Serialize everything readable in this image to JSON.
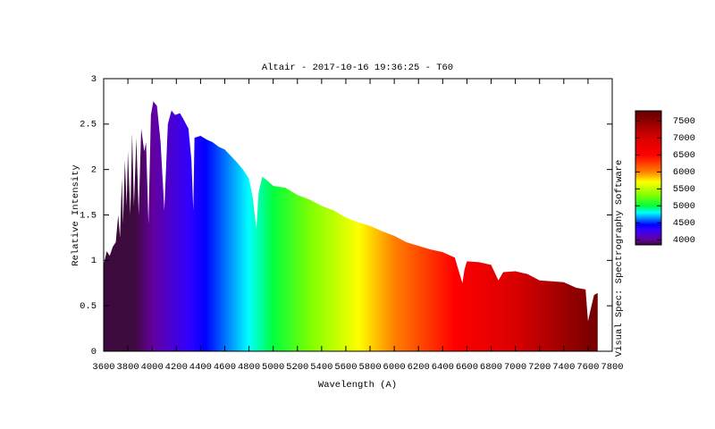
{
  "chart_data": {
    "type": "area",
    "title": "Altair - 2017-10-16 19:36:25 - T60",
    "x_label": "Wavelength (A)",
    "y_label": "Relative Intensity",
    "side_label": "Visual Spec: Spectrography Software",
    "x": [
      3600,
      3625,
      3650,
      3675,
      3700,
      3720,
      3735,
      3750,
      3760,
      3775,
      3790,
      3800,
      3820,
      3835,
      3850,
      3870,
      3889,
      3910,
      3935,
      3950,
      3970,
      3990,
      4010,
      4040,
      4070,
      4101,
      4130,
      4160,
      4190,
      4230,
      4260,
      4300,
      4325,
      4340,
      4350,
      4400,
      4450,
      4500,
      4550,
      4600,
      4650,
      4700,
      4750,
      4800,
      4830,
      4861,
      4880,
      4910,
      4950,
      5000,
      5100,
      5200,
      5300,
      5400,
      5500,
      5600,
      5700,
      5800,
      5900,
      6000,
      6100,
      6200,
      6300,
      6400,
      6500,
      6540,
      6563,
      6580,
      6600,
      6700,
      6800,
      6860,
      6900,
      7000,
      7100,
      7200,
      7300,
      7400,
      7500,
      7580,
      7600,
      7620,
      7650,
      7680
    ],
    "values": [
      0.95,
      1.1,
      1.05,
      1.15,
      1.2,
      1.5,
      1.25,
      1.9,
      1.4,
      2.1,
      1.6,
      2.2,
      1.5,
      2.4,
      1.6,
      2.35,
      1.5,
      2.45,
      2.2,
      2.3,
      1.4,
      2.6,
      2.75,
      2.7,
      2.3,
      1.55,
      2.5,
      2.65,
      2.6,
      2.62,
      2.55,
      2.45,
      2.1,
      1.55,
      2.35,
      2.37,
      2.33,
      2.3,
      2.25,
      2.22,
      2.15,
      2.08,
      2.0,
      1.9,
      1.7,
      1.35,
      1.75,
      1.92,
      1.88,
      1.82,
      1.8,
      1.72,
      1.67,
      1.6,
      1.55,
      1.47,
      1.42,
      1.38,
      1.32,
      1.27,
      1.2,
      1.16,
      1.12,
      1.09,
      1.03,
      0.85,
      0.75,
      0.9,
      0.99,
      0.98,
      0.95,
      0.78,
      0.87,
      0.88,
      0.85,
      0.78,
      0.77,
      0.76,
      0.7,
      0.68,
      0.33,
      0.45,
      0.62,
      0.64
    ],
    "xlim": [
      3600,
      7800
    ],
    "xticks": [
      3600,
      3800,
      4000,
      4200,
      4400,
      4600,
      4800,
      5000,
      5200,
      5400,
      5600,
      5800,
      6000,
      6200,
      6400,
      6600,
      6800,
      7000,
      7200,
      7400,
      7600,
      7800
    ],
    "ylim": [
      0,
      3
    ],
    "yticks": [
      0,
      0.5,
      1,
      1.5,
      2,
      2.5,
      3
    ],
    "cblim": [
      3850,
      7800
    ],
    "cbticks": [
      4000,
      4500,
      5000,
      5500,
      6000,
      6500,
      7000,
      7500
    ]
  }
}
